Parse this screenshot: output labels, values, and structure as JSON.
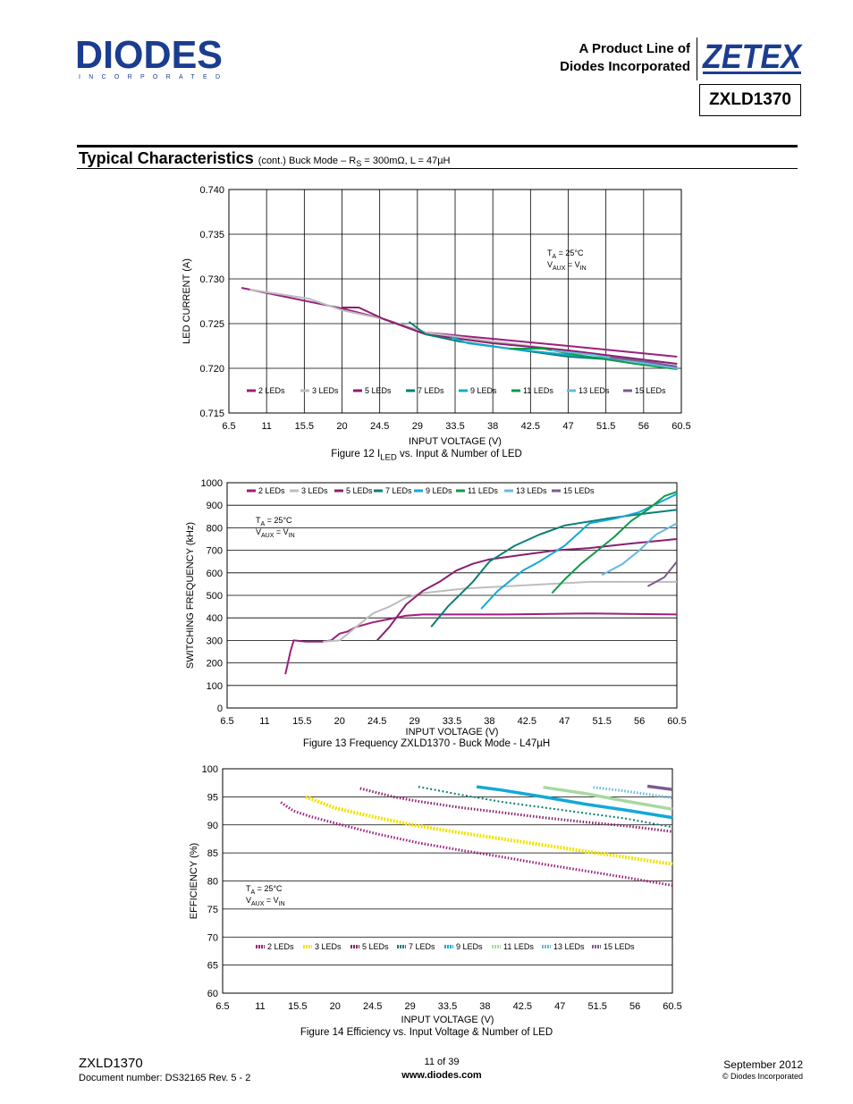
{
  "header": {
    "product_line_1": "A Product Line of",
    "product_line_2": "Diodes Incorporated",
    "part_number": "ZXLD1370",
    "logo_text": "DIODES",
    "logo_subtext": "INCORPORATED",
    "zetex_text": "ZETEX"
  },
  "section": {
    "title": "Typical Characteristics",
    "subtitle_pre": "(cont.) Buck Mode – R",
    "subtitle_sub": "S",
    "subtitle_post": " = 300mΩ, L = 47µH"
  },
  "colors": {
    "s2": "#9b1f7e",
    "s3": "#bdbdbd",
    "s5": "#8a1f6e",
    "s7": "#0a7f72",
    "s9": "#13a9d7",
    "s11": "#119944",
    "s13": "#65b9dd",
    "s15": "#7a5a93",
    "s3eff": "#f2e400",
    "s11eff": "#a8d9a0"
  },
  "captions": {
    "fig12": "Figure 12  I",
    "fig12_sub": "LED",
    "fig12_post": " vs. Input & Number of LED",
    "fig13": "Figure 13  Frequency ZXLD1370 - Buck Mode - L47µH",
    "fig14": "Figure 14  Efficiency vs. Input Voltage & Number of LED"
  },
  "footer": {
    "part": "ZXLD1370",
    "doc": "Document number: DS32165 Rev. 5 - 2",
    "page": "11 of 39",
    "url": "www.diodes.com",
    "date": "September 2012",
    "copyright": "© Diodes Incorporated"
  },
  "chart_data": [
    {
      "type": "line",
      "xlabel": "INPUT VOLTAGE (V)",
      "ylabel": "LED CURRENT (A)",
      "xticks": [
        "6.5",
        "11",
        "15.5",
        "20",
        "24.5",
        "29",
        "33.5",
        "38",
        "42.5",
        "47",
        "51.5",
        "56",
        "60.5"
      ],
      "ytick_labels": [
        "0.715",
        "0.720",
        "0.725",
        "0.730",
        "0.735",
        "0.740"
      ],
      "xlim": [
        6.5,
        60.5
      ],
      "ylim": [
        0.715,
        0.74
      ],
      "grid": "both",
      "legend": "bottom",
      "annotation": [
        "T",
        "A",
        " = 25°C",
        "V",
        "AUX",
        " = V",
        "IN"
      ],
      "series": [
        {
          "name": "2 LEDs",
          "color": "#9b1f7e",
          "x": [
            8,
            20,
            25,
            30,
            38,
            47,
            60
          ],
          "y": [
            0.729,
            0.7267,
            0.7255,
            0.724,
            0.7233,
            0.7225,
            0.7213
          ]
        },
        {
          "name": "3 LEDs",
          "color": "#bdbdbd",
          "x": [
            9,
            16,
            20,
            25,
            30,
            38,
            47,
            60
          ],
          "y": [
            0.7288,
            0.7278,
            0.7265,
            0.7255,
            0.724,
            0.723,
            0.722,
            0.7205
          ]
        },
        {
          "name": "5 LEDs",
          "color": "#8a1f6e",
          "x": [
            20,
            22,
            25,
            30,
            38,
            47,
            60
          ],
          "y": [
            0.7268,
            0.7268,
            0.7255,
            0.7238,
            0.7228,
            0.722,
            0.7205
          ]
        },
        {
          "name": "7 LEDs",
          "color": "#0a7f72",
          "x": [
            28,
            30,
            34,
            40,
            47,
            55,
            60
          ],
          "y": [
            0.7252,
            0.7238,
            0.723,
            0.7222,
            0.7213,
            0.7208,
            0.72
          ]
        },
        {
          "name": "9 LEDs",
          "color": "#13a9d7",
          "x": [
            33,
            35,
            40,
            47,
            55,
            60
          ],
          "y": [
            0.7235,
            0.7228,
            0.7222,
            0.7215,
            0.7208,
            0.7202
          ]
        },
        {
          "name": "11 LEDs",
          "color": "#119944",
          "x": [
            40,
            44,
            48,
            55,
            60
          ],
          "y": [
            0.7222,
            0.7222,
            0.7215,
            0.7205,
            0.7199
          ]
        },
        {
          "name": "13 LEDs",
          "color": "#65b9dd",
          "x": [
            45,
            50,
            55,
            60
          ],
          "y": [
            0.722,
            0.7215,
            0.7207,
            0.72
          ]
        },
        {
          "name": "15 LEDs",
          "color": "#7a5a93",
          "x": [
            52,
            56,
            60
          ],
          "y": [
            0.7212,
            0.7208,
            0.7202
          ]
        }
      ]
    },
    {
      "type": "line",
      "xlabel": "INPUT VOLTAGE (V)",
      "ylabel": "SWITCHING FREQUENCY (kHz)",
      "xticks": [
        "6.5",
        "11",
        "15.5",
        "20",
        "24.5",
        "29",
        "33.5",
        "38",
        "42.5",
        "47",
        "51.5",
        "56",
        "60.5"
      ],
      "ytick_labels": [
        "0",
        "100",
        "200",
        "300",
        "400",
        "500",
        "600",
        "700",
        "800",
        "900",
        "1000"
      ],
      "xlim": [
        6.5,
        60.5
      ],
      "ylim": [
        0,
        1000
      ],
      "grid": "horizontal",
      "legend": "top",
      "annotation": [
        "T",
        "A",
        " = 25°C",
        "V",
        "AUX",
        " = V",
        "IN"
      ],
      "series": [
        {
          "name": "2 LEDs",
          "color": "#9b1f7e",
          "x": [
            13.5,
            13.8,
            14.1,
            14.5,
            16,
            18,
            19,
            20,
            21,
            22,
            24,
            26,
            28,
            30,
            40,
            50,
            60.5
          ],
          "y": [
            150,
            200,
            250,
            300,
            295,
            295,
            300,
            330,
            340,
            360,
            380,
            395,
            410,
            415,
            415,
            420,
            415
          ]
        },
        {
          "name": "3 LEDs",
          "color": "#bdbdbd",
          "x": [
            18,
            20,
            22,
            24,
            26,
            28,
            30,
            35,
            40,
            50,
            60.5
          ],
          "y": [
            295,
            300,
            360,
            420,
            450,
            490,
            510,
            530,
            540,
            560,
            560
          ]
        },
        {
          "name": "5 LEDs",
          "color": "#8a1f6e",
          "x": [
            24.5,
            26,
            28,
            30,
            32,
            34,
            36,
            38,
            42,
            46,
            50,
            55,
            60.5
          ],
          "y": [
            300,
            360,
            460,
            520,
            560,
            610,
            640,
            660,
            680,
            700,
            710,
            730,
            750
          ]
        },
        {
          "name": "7 LEDs",
          "color": "#0a7f72",
          "x": [
            31,
            33,
            36,
            38,
            41,
            44,
            47,
            52,
            56,
            60.5
          ],
          "y": [
            360,
            450,
            560,
            650,
            720,
            770,
            810,
            840,
            860,
            880
          ]
        },
        {
          "name": "9 LEDs",
          "color": "#13a9d7",
          "x": [
            37,
            39,
            42,
            44,
            47,
            50,
            53,
            56,
            60.5
          ],
          "y": [
            440,
            520,
            610,
            650,
            720,
            820,
            840,
            870,
            950
          ]
        },
        {
          "name": "11 LEDs",
          "color": "#119944",
          "x": [
            45.5,
            47,
            49,
            51,
            53,
            55,
            57,
            59,
            60.5
          ],
          "y": [
            510,
            570,
            640,
            700,
            760,
            830,
            880,
            940,
            960
          ]
        },
        {
          "name": "13 LEDs",
          "color": "#65b9dd",
          "x": [
            51.5,
            54,
            56,
            58,
            60.5
          ],
          "y": [
            590,
            640,
            700,
            770,
            820
          ]
        },
        {
          "name": "15 LEDs",
          "color": "#7a5a93",
          "x": [
            57,
            59,
            60.5
          ],
          "y": [
            540,
            580,
            650
          ]
        }
      ]
    },
    {
      "type": "line",
      "xlabel": "INPUT VOLTAGE (V)",
      "ylabel": "EFFICIENCY (%)",
      "xticks": [
        "6.5",
        "11",
        "15.5",
        "20",
        "24.5",
        "29",
        "33.5",
        "38",
        "42.5",
        "47",
        "51.5",
        "56",
        "60.5"
      ],
      "ytick_labels": [
        "60",
        "65",
        "70",
        "75",
        "80",
        "85",
        "90",
        "95",
        "100"
      ],
      "xlim": [
        6.5,
        60.5
      ],
      "ylim": [
        60,
        100
      ],
      "grid": "horizontal",
      "legend": "bottom",
      "annotation": [
        "T",
        "A",
        " = 25°C",
        "V",
        "AUX",
        " = V",
        "IN"
      ],
      "series": [
        {
          "name": "2 LEDs",
          "color": "#9b1f7e",
          "x": [
            13.5,
            15,
            17,
            20,
            25,
            30,
            35,
            40,
            45,
            50,
            55,
            60.5
          ],
          "y": [
            94,
            92.5,
            91.5,
            90.3,
            88.4,
            86.8,
            85.5,
            84.3,
            83,
            81.8,
            80.6,
            79.2
          ]
        },
        {
          "name": "3 LEDs",
          "color": "#f2e400",
          "x": [
            16.5,
            20,
            25,
            30,
            35,
            40,
            45,
            50,
            55,
            60.5
          ],
          "y": [
            95,
            93,
            91.3,
            89.8,
            88.6,
            87.5,
            86.4,
            85.3,
            84.2,
            83
          ]
        },
        {
          "name": "5 LEDs",
          "color": "#8a1f6e",
          "x": [
            23,
            27,
            30,
            35,
            40,
            45,
            50,
            55,
            60.5
          ],
          "y": [
            96.5,
            95,
            94.2,
            93.1,
            92.2,
            91.3,
            90.5,
            89.8,
            88.8
          ]
        },
        {
          "name": "7 LEDs",
          "color": "#0a7f72",
          "x": [
            30,
            35,
            40,
            45,
            50,
            55,
            60.5
          ],
          "y": [
            96.8,
            95.4,
            94.1,
            93.1,
            92.1,
            91.1,
            89.6
          ]
        },
        {
          "name": "9 LEDs",
          "color": "#13a9d7",
          "x": [
            37,
            40,
            45,
            50,
            55,
            60.5
          ],
          "y": [
            96.8,
            96.2,
            95,
            93.7,
            92.6,
            91.3
          ]
        },
        {
          "name": "11 LEDs",
          "color": "#a8d9a0",
          "x": [
            45,
            50,
            55,
            60.5
          ],
          "y": [
            96.7,
            95.6,
            94.2,
            92.8
          ]
        },
        {
          "name": "13 LEDs",
          "color": "#65b9dd",
          "x": [
            51,
            55,
            60.5
          ],
          "y": [
            96.7,
            96,
            94.8
          ]
        },
        {
          "name": "15 LEDs",
          "color": "#7a5a93",
          "x": [
            57.5,
            60.5
          ],
          "y": [
            96.9,
            96.3
          ]
        }
      ]
    }
  ]
}
